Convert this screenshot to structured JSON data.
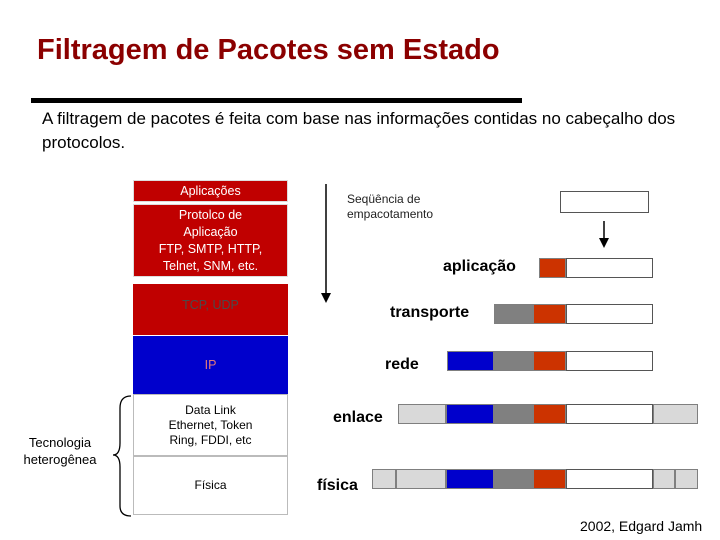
{
  "slide": {
    "title": "Filtragem de Pacotes sem Estado",
    "intro": "A filtragem de pacotes é feita com base nas informações contidas no cabeçalho dos protocolos.",
    "credit": "2002, Edgard Jamh"
  },
  "stack": {
    "applications": "Aplicações",
    "app_protocol": [
      "Protolco de",
      "Aplicação",
      "FTP, SMTP, HTTP,",
      "Telnet, SNM, etc."
    ],
    "transport": "TCP, UDP",
    "network": "IP",
    "datalink": [
      "Data Link",
      "Ethernet, Token",
      "Ring, FDDI, etc"
    ],
    "physical": "Física"
  },
  "heterogeneous": [
    "Tecnologia",
    "heterogênea"
  ],
  "encapsulation": {
    "sequence_label": [
      "Seqüência de",
      "empacotamento"
    ],
    "layers": {
      "application": "aplicação",
      "transport": "transporte",
      "network": "rede",
      "link": "enlace",
      "physical": "física"
    }
  },
  "colors": {
    "title": "#8b0000",
    "app_red": "#c00000",
    "header_red": "#cc3300",
    "header_gray": "#808080",
    "header_blue": "#0000cc",
    "trailer_light": "#d9d9d9"
  }
}
